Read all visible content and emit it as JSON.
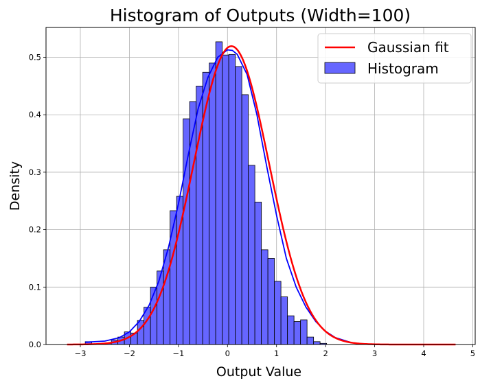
{
  "chart_data": {
    "type": "bar",
    "title": "Histogram of Outputs (Width=100)",
    "xlabel": "Output Value",
    "ylabel": "Density",
    "xlim": [
      -3.7,
      5.05
    ],
    "ylim": [
      0,
      0.552
    ],
    "xticks": [
      -3,
      -2,
      -1,
      0,
      1,
      2,
      3,
      4,
      5
    ],
    "yticks": [
      0.0,
      0.1,
      0.2,
      0.3,
      0.4,
      0.5
    ],
    "ytick_labels": [
      "0.0",
      "0.1",
      "0.2",
      "0.3",
      "0.4",
      "0.5"
    ],
    "grid": true,
    "legend_position": "top-right",
    "bar_color": "#6666ff",
    "bar_edge_color": "#000000",
    "kde_color": "#0000ff",
    "fit_color": "#ff0000",
    "histogram": {
      "name": "Histogram",
      "bin_width": 0.133,
      "bin_edges_start": -2.9,
      "values": [
        0.005,
        0.0,
        0.0,
        0.002,
        0.008,
        0.013,
        0.022,
        0.02,
        0.042,
        0.065,
        0.1,
        0.128,
        0.165,
        0.233,
        0.258,
        0.393,
        0.423,
        0.45,
        0.474,
        0.49,
        0.527,
        0.504,
        0.505,
        0.484,
        0.435,
        0.312,
        0.248,
        0.165,
        0.15,
        0.11,
        0.083,
        0.05,
        0.04,
        0.043,
        0.013,
        0.005,
        0.002
      ]
    },
    "series": [
      {
        "name": "Gaussian fit",
        "type": "line",
        "mean": 0.08,
        "std": 0.768,
        "x_range": [
          -3.27,
          4.65
        ]
      },
      {
        "type": "kde",
        "x": [
          -2.9,
          -2.5,
          -2.2,
          -2.0,
          -1.8,
          -1.6,
          -1.4,
          -1.2,
          -1.0,
          -0.8,
          -0.6,
          -0.4,
          -0.2,
          0.0,
          0.1,
          0.2,
          0.4,
          0.6,
          0.8,
          1.0,
          1.2,
          1.4,
          1.6,
          1.8,
          2.0,
          2.2,
          2.5
        ],
        "y": [
          0.004,
          0.006,
          0.012,
          0.022,
          0.04,
          0.068,
          0.11,
          0.17,
          0.245,
          0.33,
          0.41,
          0.465,
          0.5,
          0.513,
          0.512,
          0.505,
          0.47,
          0.4,
          0.31,
          0.225,
          0.15,
          0.1,
          0.065,
          0.04,
          0.023,
          0.012,
          0.004
        ]
      }
    ],
    "legend": [
      "Gaussian fit",
      "Histogram"
    ]
  }
}
